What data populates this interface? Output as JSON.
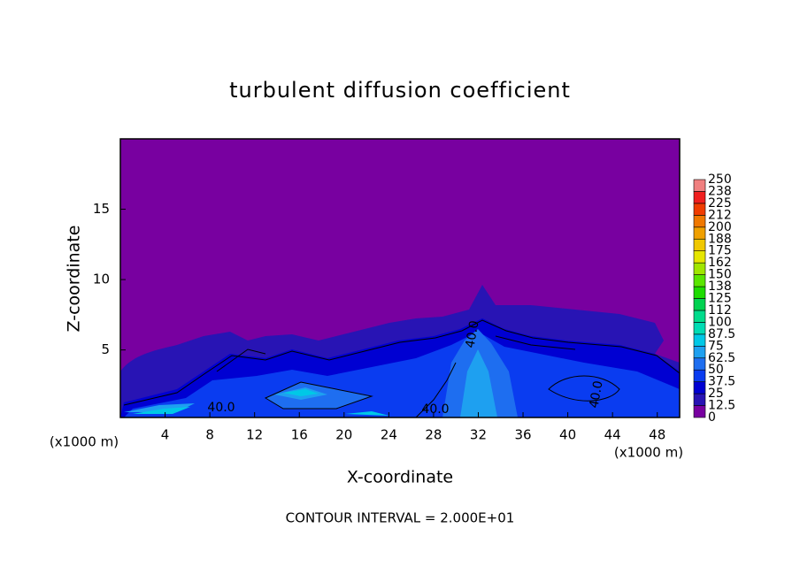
{
  "chart_data": {
    "type": "contour",
    "title": "turbulent diffusion coefficient",
    "xlabel": "X-coordinate",
    "ylabel": "Z-coordinate",
    "x_unit": "(x1000 m)",
    "y_unit": "(x1000 m)",
    "footnote": "CONTOUR INTERVAL = 2.000E+01",
    "xlim": [
      0,
      50
    ],
    "ylim": [
      0.2,
      20
    ],
    "xticks": [
      4,
      8,
      12,
      16,
      20,
      24,
      28,
      32,
      36,
      40,
      44,
      48
    ],
    "yticks": [
      5,
      10,
      15
    ],
    "annotations": [
      "40.0",
      "40.0",
      "40.0",
      "40.0"
    ],
    "colorbar": {
      "levels": [
        0,
        12.5,
        25,
        37.5,
        50,
        62.5,
        75,
        87.5,
        100,
        112,
        125,
        138,
        150,
        162,
        175,
        188,
        200,
        212,
        225,
        238,
        250
      ],
      "colors": [
        "#7800a0",
        "#2814b4",
        "#0000d2",
        "#0a3cf0",
        "#1e6ef0",
        "#1ea0f0",
        "#00c8e6",
        "#00dcb4",
        "#00dc8c",
        "#00d250",
        "#1edc00",
        "#5ae600",
        "#a0e600",
        "#e6e600",
        "#f0c800",
        "#f0a000",
        "#f07800",
        "#f03c00",
        "#f01e1e",
        "#f08080"
      ]
    }
  }
}
